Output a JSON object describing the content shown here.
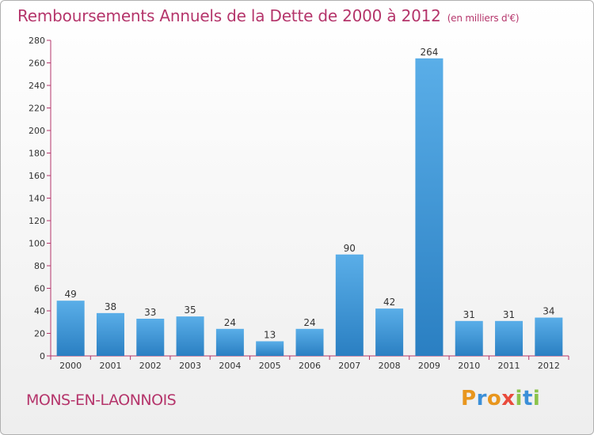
{
  "title": "Remboursements Annuels de la Dette de 2000 à 2012",
  "title_unit": "(en milliers d'€)",
  "commune": "MONS-EN-LAONNOIS",
  "logo": "Proxiti",
  "colors": {
    "title": "#b5356b",
    "bar_top": "#5aaee8",
    "bar_bottom": "#2a7fc2",
    "axis": "#b5356b"
  },
  "chart_data": {
    "type": "bar",
    "title": "Remboursements Annuels de la Dette de 2000 à 2012",
    "xlabel": "",
    "ylabel": "",
    "categories": [
      "2000",
      "2001",
      "2002",
      "2003",
      "2004",
      "2005",
      "2006",
      "2007",
      "2008",
      "2009",
      "2010",
      "2011",
      "2012"
    ],
    "values": [
      49,
      38,
      33,
      35,
      24,
      13,
      24,
      90,
      42,
      264,
      31,
      31,
      34
    ],
    "ylim": [
      0,
      280
    ],
    "yticks": [
      0,
      20,
      40,
      60,
      80,
      100,
      120,
      140,
      160,
      180,
      200,
      220,
      240,
      260,
      280
    ],
    "grid": false,
    "legend": "none"
  }
}
